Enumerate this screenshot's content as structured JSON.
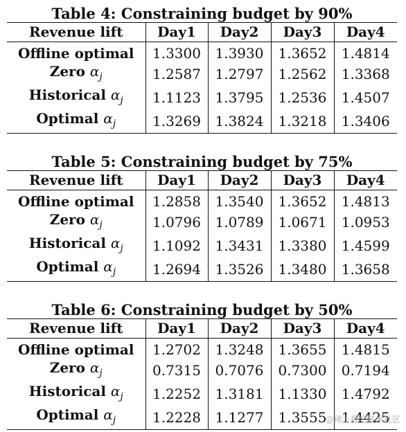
{
  "tables": [
    {
      "caption": "Table 4: Constraining budget by 90%",
      "headers": [
        "Revenue lift",
        "Day1",
        "Day2",
        "Day3",
        "Day4"
      ],
      "rows": [
        {
          "label": "Offline optimal",
          "values": [
            "1.3300",
            "1.3930",
            "1.3652",
            "1.4814"
          ]
        },
        {
          "label": "Zero αj",
          "values": [
            "1.2587",
            "1.2797",
            "1.2562",
            "1.3368"
          ]
        },
        {
          "label": "Historical αj",
          "values": [
            "1.1123",
            "1.3795",
            "1.2536",
            "1.4507"
          ]
        },
        {
          "label": "Optimal αj",
          "values": [
            "1.3269",
            "1.3824",
            "1.3218",
            "1.3406"
          ]
        }
      ]
    },
    {
      "caption": "Table 5: Constraining budget by 75%",
      "headers": [
        "Revenue lift",
        "Day1",
        "Day2",
        "Day3",
        "Day4"
      ],
      "rows": [
        {
          "label": "Offline optimal",
          "values": [
            "1.2858",
            "1.3540",
            "1.3652",
            "1.4813"
          ]
        },
        {
          "label": "Zero αj",
          "values": [
            "1.0796",
            "1.0789",
            "1.0671",
            "1.0953"
          ]
        },
        {
          "label": "Historical αj",
          "values": [
            "1.1092",
            "1.3431",
            "1.3380",
            "1.4599"
          ]
        },
        {
          "label": "Optimal αj",
          "values": [
            "1.2694",
            "1.3526",
            "1.3480",
            "1.3658"
          ]
        }
      ]
    },
    {
      "caption": "Table 6: Constraining budget by 50%",
      "headers": [
        "Revenue lift",
        "Day1",
        "Day2",
        "Day3",
        "Day4"
      ],
      "rows": [
        {
          "label": "Offline optimal",
          "values": [
            "1.2702",
            "1.3248",
            "1.3655",
            "1.4815"
          ]
        },
        {
          "label": "Zero αj",
          "values": [
            "0.7315",
            "0.7076",
            "0.7300",
            "0.7194"
          ]
        },
        {
          "label": "Historical αj",
          "values": [
            "1.2252",
            "1.3181",
            "1.1330",
            "1.4792"
          ]
        },
        {
          "label": "Optimal αj",
          "values": [
            "1.2228",
            "1.1277",
            "1.3555",
            "1.4425"
          ]
        }
      ]
    }
  ],
  "watermark": "@稀土掘金技术社区"
}
